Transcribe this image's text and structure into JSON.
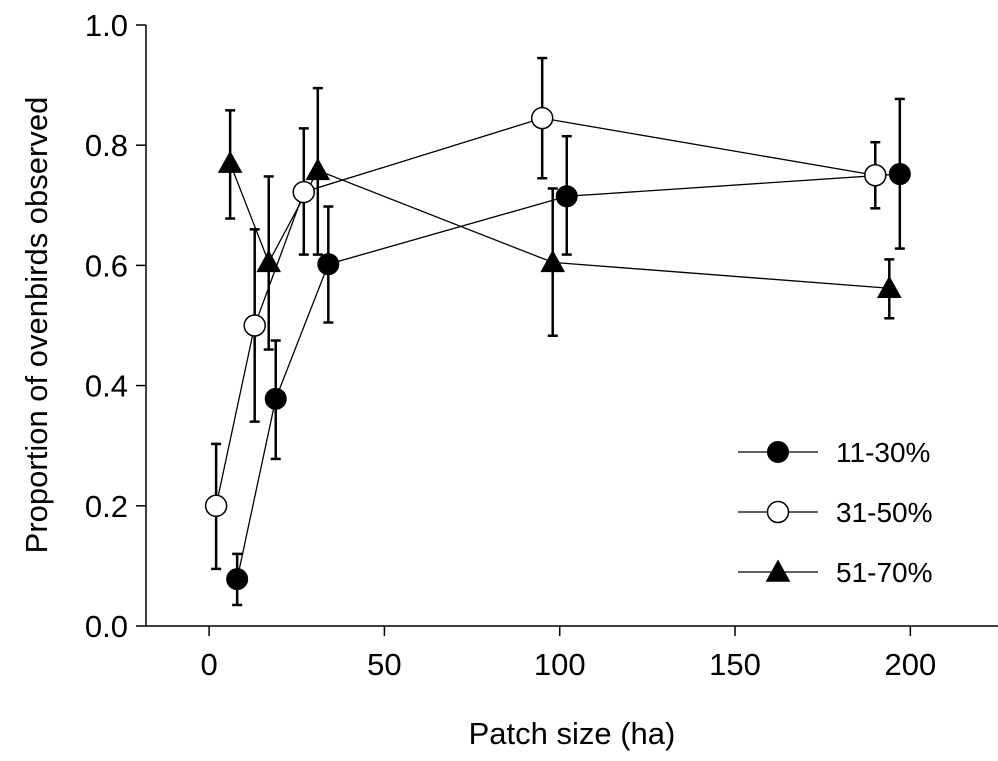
{
  "chart_data": {
    "type": "scatter",
    "title": "",
    "xlabel": "Patch size (ha)",
    "ylabel": "Proportion of ovenbirds observed",
    "xlim": [
      -18,
      225
    ],
    "ylim": [
      0,
      1.0
    ],
    "xticks": [
      0,
      50,
      100,
      150,
      200
    ],
    "xtick_labels": [
      "0",
      "50",
      "100",
      "150",
      "200"
    ],
    "yticks": [
      0,
      0.2,
      0.4,
      0.6,
      0.8,
      1.0
    ],
    "ytick_labels": [
      "0.0",
      "0.2",
      "0.4",
      "0.6",
      "0.8",
      "1.0"
    ],
    "grid": false,
    "legend_position": "bottom-right",
    "series": [
      {
        "name": "11-30%",
        "marker": "filled-circle",
        "color": "#000000",
        "x": [
          8,
          19,
          34,
          102,
          197
        ],
        "y": [
          0.078,
          0.378,
          0.602,
          0.715,
          0.752
        ],
        "err_low": [
          0.035,
          0.278,
          0.505,
          0.618,
          0.628
        ],
        "err_high": [
          0.12,
          0.475,
          0.698,
          0.815,
          0.877
        ]
      },
      {
        "name": "31-50%",
        "marker": "open-circle",
        "color": "#000000",
        "x": [
          2,
          13,
          27,
          95,
          190
        ],
        "y": [
          0.2,
          0.5,
          0.722,
          0.845,
          0.75
        ],
        "err_low": [
          0.095,
          0.34,
          0.618,
          0.745,
          0.695
        ],
        "err_high": [
          0.303,
          0.66,
          0.828,
          0.945,
          0.805
        ]
      },
      {
        "name": "51-70%",
        "marker": "filled-triangle",
        "color": "#000000",
        "x": [
          6,
          17,
          31,
          98,
          194
        ],
        "y": [
          0.77,
          0.605,
          0.758,
          0.605,
          0.562
        ],
        "err_low": [
          0.678,
          0.46,
          0.618,
          0.483,
          0.512
        ],
        "err_high": [
          0.858,
          0.748,
          0.895,
          0.728,
          0.61
        ]
      }
    ]
  }
}
